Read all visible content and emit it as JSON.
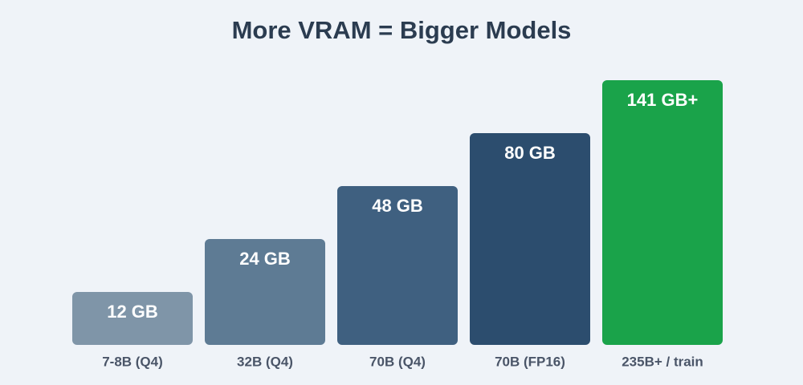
{
  "title": "More VRAM = Bigger Models",
  "bars": [
    {
      "label": "12 GB",
      "category": "7-8B (Q4)",
      "color": "#7f95a8"
    },
    {
      "label": "24 GB",
      "category": "32B (Q4)",
      "color": "#5e7b94"
    },
    {
      "label": "48 GB",
      "category": "70B (Q4)",
      "color": "#3f6080"
    },
    {
      "label": "80 GB",
      "category": "70B (FP16)",
      "color": "#2c4d6e"
    },
    {
      "label": "141 GB+",
      "category": "235B+ / train",
      "color": "#1aa34a"
    }
  ]
}
